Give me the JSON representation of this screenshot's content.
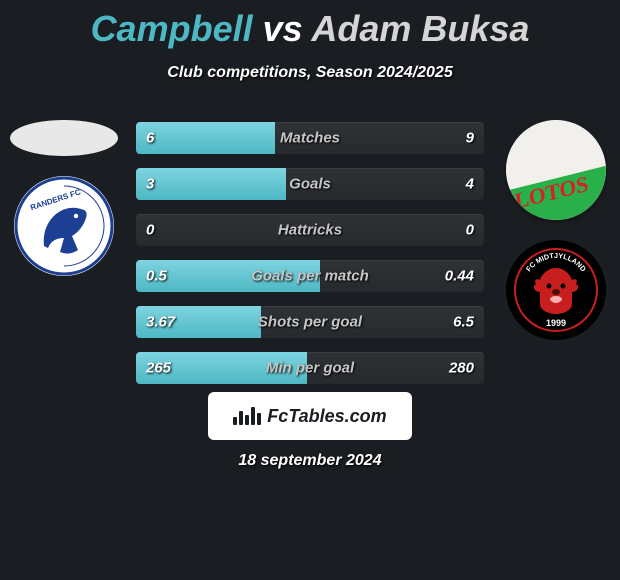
{
  "title": {
    "player1": "Campbell",
    "vs": "vs",
    "player2": "Adam Buksa"
  },
  "subtitle": "Club competitions, Season 2024/2025",
  "colors": {
    "player1_accent": "#4db8c4",
    "fill_gradient_top": "#7ed4e0",
    "fill_gradient_bottom": "#4db8c4",
    "bar_bg_top": "#2f3236",
    "bar_bg_bottom": "#26292d",
    "background": "#1a1d21",
    "text": "#ffffff",
    "muted": "#c6c6c6"
  },
  "bars": [
    {
      "label": "Matches",
      "left_val": "6",
      "right_val": "9",
      "fill_pct": 40
    },
    {
      "label": "Goals",
      "left_val": "3",
      "right_val": "4",
      "fill_pct": 43
    },
    {
      "label": "Hattricks",
      "left_val": "0",
      "right_val": "0",
      "fill_pct": 0
    },
    {
      "label": "Goals per match",
      "left_val": "0.5",
      "right_val": "0.44",
      "fill_pct": 53
    },
    {
      "label": "Shots per goal",
      "left_val": "3.67",
      "right_val": "6.5",
      "fill_pct": 36
    },
    {
      "label": "Min per goal",
      "left_val": "265",
      "right_val": "280",
      "fill_pct": 49
    }
  ],
  "left_badges": [
    {
      "type": "avatar-placeholder"
    },
    {
      "type": "randers",
      "bg": "#ffffff",
      "fg": "#1c3f94",
      "label": "RANDERS FC"
    }
  ],
  "right_badges": [
    {
      "type": "lotos",
      "stripe_top": "#ffffff",
      "stripe_bottom": "#2ab04a",
      "text": "LOTOS",
      "text_color": "#d62027"
    },
    {
      "type": "midtjylland",
      "bg": "#000000",
      "ring": "#c81e1e",
      "label_top": "FC MIDTJYLLAND",
      "year": "1999"
    }
  ],
  "site": {
    "text_prefix": "Fc",
    "text_rest": "Tables.com"
  },
  "date": "18 september 2024"
}
